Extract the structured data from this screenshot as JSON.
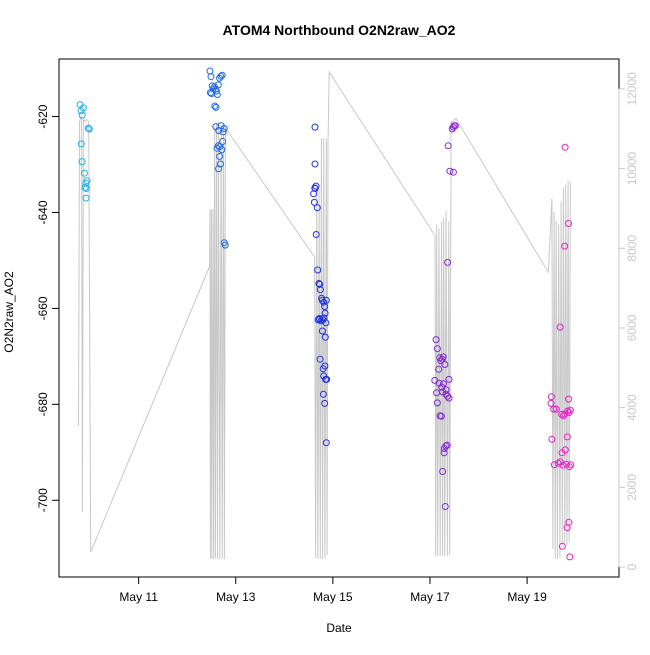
{
  "chart_data": {
    "type": "scatter",
    "title": "ATOM4 Northbound O2N2raw_AO2",
    "xlabel": "Date",
    "ylabel": "O2N2raw_AO2",
    "x_axis": {
      "type": "date",
      "range": [
        "2023-05-09T08:38",
        "2023-05-20T21:26"
      ],
      "ticks": [
        {
          "label": "May 11",
          "value": "2023-05-11T00:00"
        },
        {
          "label": "May 13",
          "value": "2023-05-13T00:00"
        },
        {
          "label": "May 15",
          "value": "2023-05-15T00:00"
        },
        {
          "label": "May 17",
          "value": "2023-05-17T00:00"
        },
        {
          "label": "May 19",
          "value": "2023-05-19T00:00"
        }
      ]
    },
    "y_axis": {
      "range": [
        -716,
        -608
      ],
      "ticks": [
        -620,
        -640,
        -660,
        -680,
        -700
      ]
    },
    "y2_axis": {
      "range": [
        -250,
        12750
      ],
      "ticks": [
        0,
        2000,
        4000,
        6000,
        8000,
        10000,
        12000
      ],
      "color": "#c8c8c8"
    },
    "grid": false,
    "legend": "none",
    "colors": {
      "gradient_start": "#1fb0ee",
      "gradient_mid": "#2030e0",
      "gradient_end": "#ee20c8",
      "line": "#c8c8c8"
    },
    "series": [
      {
        "kind": "points",
        "axis": "left",
        "points": [
          [
            "2023-05-09T19:03",
            -617.5
          ],
          [
            "2023-05-09T19:32",
            -618.8
          ],
          [
            "2023-05-09T20:07",
            -619.7
          ],
          [
            "2023-05-09T20:42",
            -618.2
          ],
          [
            "2023-05-09T19:38",
            -625.7
          ],
          [
            "2023-05-09T20:02",
            -629.4
          ],
          [
            "2023-05-09T21:14",
            -631.8
          ],
          [
            "2023-05-09T21:55",
            -633.9
          ],
          [
            "2023-05-09T22:30",
            -633.4
          ],
          [
            "2023-05-09T21:31",
            -634.8
          ],
          [
            "2023-05-09T22:12",
            -635.0
          ],
          [
            "2023-05-09T22:01",
            -637.0
          ],
          [
            "2023-05-09T23:07",
            -622.4
          ],
          [
            "2023-05-09T23:36",
            -622.6
          ],
          [
            "2023-05-12T11:17",
            -610.5
          ],
          [
            "2023-05-12T11:46",
            -611.7
          ],
          [
            "2023-05-12T12:22",
            -613.6
          ],
          [
            "2023-05-12T12:51",
            -614.2
          ],
          [
            "2023-05-12T13:26",
            -613.8
          ],
          [
            "2023-05-12T13:55",
            -614.3
          ],
          [
            "2023-05-12T11:29",
            -615.0
          ],
          [
            "2023-05-12T12:04",
            -615.2
          ],
          [
            "2023-05-12T14:24",
            -614.7
          ],
          [
            "2023-05-12T14:53",
            -615.4
          ],
          [
            "2023-05-12T13:38",
            -617.8
          ],
          [
            "2023-05-12T14:13",
            -618.1
          ],
          [
            "2023-05-12T15:22",
            -613.4
          ],
          [
            "2023-05-12T16:02",
            -612.0
          ],
          [
            "2023-05-12T16:37",
            -611.6
          ],
          [
            "2023-05-12T17:18",
            -611.4
          ],
          [
            "2023-05-12T17:47",
            -623.2
          ],
          [
            "2023-05-12T18:17",
            -622.5
          ],
          [
            "2023-05-12T15:34",
            -622.9
          ],
          [
            "2023-05-12T16:48",
            -621.9
          ],
          [
            "2023-05-12T14:07",
            -622.1
          ],
          [
            "2023-05-12T14:48",
            -626.6
          ],
          [
            "2023-05-12T15:22",
            -626.1
          ],
          [
            "2023-05-12T16:08",
            -626.3
          ],
          [
            "2023-05-12T17:06",
            -626.9
          ],
          [
            "2023-05-12T17:29",
            -625.2
          ],
          [
            "2023-05-12T16:02",
            -628.3
          ],
          [
            "2023-05-12T16:25",
            -629.9
          ],
          [
            "2023-05-12T15:28",
            -630.9
          ],
          [
            "2023-05-12T18:17",
            -646.3
          ],
          [
            "2023-05-12T18:46",
            -646.8
          ],
          [
            "2023-05-14T15:10",
            -622.2
          ],
          [
            "2023-05-14T14:30",
            -636.1
          ],
          [
            "2023-05-14T15:04",
            -634.9
          ],
          [
            "2023-05-14T15:39",
            -634.5
          ],
          [
            "2023-05-14T15:16",
            -635.0
          ],
          [
            "2023-05-14T14:53",
            -637.9
          ],
          [
            "2023-05-14T15:10",
            -629.9
          ],
          [
            "2023-05-14T16:19",
            -639.0
          ],
          [
            "2023-05-14T15:45",
            -644.6
          ],
          [
            "2023-05-14T16:31",
            -652.0
          ],
          [
            "2023-05-14T17:05",
            -654.8
          ],
          [
            "2023-05-14T17:34",
            -655.0
          ],
          [
            "2023-05-14T18:43",
            -658.3
          ],
          [
            "2023-05-14T17:46",
            -656.1
          ],
          [
            "2023-05-14T18:26",
            -657.9
          ],
          [
            "2023-05-14T19:24",
            -658.7
          ],
          [
            "2023-05-14T19:58",
            -659.6
          ],
          [
            "2023-05-14T20:44",
            -658.3
          ],
          [
            "2023-05-14T19:01",
            -662.4
          ],
          [
            "2023-05-14T18:14",
            -662.6
          ],
          [
            "2023-05-14T17:28",
            -662.3
          ],
          [
            "2023-05-14T16:42",
            -662.4
          ],
          [
            "2023-05-14T17:17",
            -662.1
          ],
          [
            "2023-05-14T19:35",
            -662.0
          ],
          [
            "2023-05-14T20:10",
            -661.0
          ],
          [
            "2023-05-14T20:33",
            -663.0
          ],
          [
            "2023-05-14T18:49",
            -664.7
          ],
          [
            "2023-05-14T20:16",
            -666.0
          ],
          [
            "2023-05-14T17:40",
            -670.6
          ],
          [
            "2023-05-14T19:12",
            -672.6
          ],
          [
            "2023-05-14T20:04",
            -672.0
          ],
          [
            "2023-05-14T19:29",
            -674.1
          ],
          [
            "2023-05-14T20:27",
            -674.8
          ],
          [
            "2023-05-14T20:56",
            -674.8
          ],
          [
            "2023-05-14T19:18",
            -677.9
          ],
          [
            "2023-05-14T19:58",
            -679.8
          ],
          [
            "2023-05-14T20:44",
            -688.0
          ],
          [
            "2023-05-17T11:00",
            -622.6
          ],
          [
            "2023-05-17T11:29",
            -622.2
          ],
          [
            "2023-05-17T11:58",
            -621.9
          ],
          [
            "2023-05-17T12:33",
            -621.9
          ],
          [
            "2023-05-17T09:00",
            -626.1
          ],
          [
            "2023-05-17T09:52",
            -631.4
          ],
          [
            "2023-05-17T11:35",
            -631.6
          ],
          [
            "2023-05-17T08:43",
            -650.4
          ],
          [
            "2023-05-17T03:02",
            -666.5
          ],
          [
            "2023-05-17T03:37",
            -668.4
          ],
          [
            "2023-05-17T04:52",
            -670.3
          ],
          [
            "2023-05-17T05:21",
            -670.9
          ],
          [
            "2023-05-17T06:02",
            -670.6
          ],
          [
            "2023-05-17T06:31",
            -670.1
          ],
          [
            "2023-05-17T04:18",
            -672.7
          ],
          [
            "2023-05-17T07:23",
            -671.7
          ],
          [
            "2023-05-17T02:22",
            -675.0
          ],
          [
            "2023-05-17T04:35",
            -675.6
          ],
          [
            "2023-05-17T05:50",
            -676.4
          ],
          [
            "2023-05-17T06:42",
            -675.7
          ],
          [
            "2023-05-17T07:58",
            -677.0
          ],
          [
            "2023-05-17T09:23",
            -674.8
          ],
          [
            "2023-05-17T03:14",
            -677.6
          ],
          [
            "2023-05-17T06:13",
            -677.4
          ],
          [
            "2023-05-17T07:52",
            -677.9
          ],
          [
            "2023-05-17T08:43",
            -678.3
          ],
          [
            "2023-05-17T09:23",
            -678.7
          ],
          [
            "2023-05-17T03:37",
            -679.7
          ],
          [
            "2023-05-17T04:58",
            -682.4
          ],
          [
            "2023-05-17T05:38",
            -682.5
          ],
          [
            "2023-05-17T07:06",
            -689.2
          ],
          [
            "2023-05-17T07:52",
            -688.7
          ],
          [
            "2023-05-17T08:31",
            -688.5
          ],
          [
            "2023-05-17T07:00",
            -690.1
          ],
          [
            "2023-05-17T06:13",
            -694.0
          ],
          [
            "2023-05-17T07:35",
            -701.3
          ],
          [
            "2023-05-19T18:46",
            -626.4
          ],
          [
            "2023-05-19T20:27",
            -642.3
          ],
          [
            "2023-05-19T18:35",
            -647.0
          ],
          [
            "2023-05-19T16:19",
            -663.9
          ],
          [
            "2023-05-19T12:02",
            -678.4
          ],
          [
            "2023-05-19T11:48",
            -679.8
          ],
          [
            "2023-05-19T13:08",
            -681.0
          ],
          [
            "2023-05-19T14:24",
            -681.0
          ],
          [
            "2023-05-19T17:05",
            -682.1
          ],
          [
            "2023-05-19T18:00",
            -682.4
          ],
          [
            "2023-05-19T18:35",
            -682.0
          ],
          [
            "2023-05-19T20:04",
            -681.4
          ],
          [
            "2023-05-19T20:44",
            -681.7
          ],
          [
            "2023-05-19T21:26",
            -681.2
          ],
          [
            "2023-05-19T20:33",
            -678.9
          ],
          [
            "2023-05-19T12:16",
            -687.3
          ],
          [
            "2023-05-19T19:52",
            -686.8
          ],
          [
            "2023-05-19T18:52",
            -689.5
          ],
          [
            "2023-05-19T17:17",
            -690.1
          ],
          [
            "2023-05-19T13:26",
            -692.6
          ],
          [
            "2023-05-19T15:27",
            -692.3
          ],
          [
            "2023-05-19T16:25",
            -692.0
          ],
          [
            "2023-05-19T17:46",
            -692.7
          ],
          [
            "2023-05-19T19:29",
            -692.5
          ],
          [
            "2023-05-19T20:56",
            -693.0
          ],
          [
            "2023-05-19T21:37",
            -692.6
          ],
          [
            "2023-05-19T20:39",
            -704.6
          ],
          [
            "2023-05-19T19:47",
            -705.7
          ],
          [
            "2023-05-19T17:23",
            -709.6
          ],
          [
            "2023-05-19T21:08",
            -711.8
          ]
        ]
      },
      {
        "kind": "line",
        "axis": "right",
        "color": "#c8c8c8",
        "points": [
          [
            "2023-05-09T18:17",
            3540
          ],
          [
            "2023-05-09T18:46",
            11180
          ],
          [
            "2023-05-09T19:15",
            11260
          ],
          [
            "2023-05-09T19:44",
            11300
          ],
          [
            "2023-05-09T20:13",
            1380
          ],
          [
            "2023-05-09T20:42",
            11260
          ],
          [
            "2023-05-09T21:14",
            11180
          ],
          [
            "2023-05-09T21:43",
            11220
          ],
          [
            "2023-05-09T22:12",
            11220
          ],
          [
            "2023-05-09T22:46",
            11220
          ],
          [
            "2023-05-09T23:19",
            11180
          ],
          [
            "2023-05-10T00:17",
            380
          ],
          [
            "2023-05-12T11:00",
            7540
          ],
          [
            "2023-05-12T11:17",
            8980
          ],
          [
            "2023-05-12T11:29",
            220
          ],
          [
            "2023-05-12T11:58",
            8980
          ],
          [
            "2023-05-12T12:10",
            200
          ],
          [
            "2023-05-12T12:45",
            8980
          ],
          [
            "2023-05-12T13:03",
            200
          ],
          [
            "2023-05-12T13:32",
            11060
          ],
          [
            "2023-05-12T13:55",
            220
          ],
          [
            "2023-05-12T14:30",
            11140
          ],
          [
            "2023-05-12T14:59",
            200
          ],
          [
            "2023-05-12T15:28",
            11180
          ],
          [
            "2023-05-12T16:08",
            200
          ],
          [
            "2023-05-12T16:48",
            11100
          ],
          [
            "2023-05-12T17:18",
            200
          ],
          [
            "2023-05-12T17:58",
            11100
          ],
          [
            "2023-05-12T18:23",
            200
          ],
          [
            "2023-05-12T18:52",
            11020
          ],
          [
            "2023-05-14T14:59",
            7780
          ],
          [
            "2023-05-14T15:28",
            220
          ],
          [
            "2023-05-14T16:02",
            9500
          ],
          [
            "2023-05-14T16:37",
            200
          ],
          [
            "2023-05-14T17:11",
            9440
          ],
          [
            "2023-05-14T17:46",
            200
          ],
          [
            "2023-05-14T18:20",
            10760
          ],
          [
            "2023-05-14T18:55",
            200
          ],
          [
            "2023-05-14T19:29",
            10760
          ],
          [
            "2023-05-14T20:04",
            220
          ],
          [
            "2023-05-14T20:44",
            10760
          ],
          [
            "2023-05-14T21:08",
            300
          ],
          [
            "2023-05-14T21:37",
            10640
          ],
          [
            "2023-05-14T22:12",
            12420
          ],
          [
            "2023-05-17T02:28",
            8320
          ],
          [
            "2023-05-17T02:51",
            280
          ],
          [
            "2023-05-17T03:20",
            8600
          ],
          [
            "2023-05-17T03:49",
            280
          ],
          [
            "2023-05-17T04:29",
            8500
          ],
          [
            "2023-05-17T05:04",
            280
          ],
          [
            "2023-05-17T05:44",
            8680
          ],
          [
            "2023-05-17T06:13",
            280
          ],
          [
            "2023-05-17T06:48",
            8780
          ],
          [
            "2023-05-17T07:17",
            280
          ],
          [
            "2023-05-17T07:58",
            8940
          ],
          [
            "2023-05-17T08:37",
            280
          ],
          [
            "2023-05-17T09:17",
            8680
          ],
          [
            "2023-05-17T09:46",
            300
          ],
          [
            "2023-05-17T10:26",
            11140
          ],
          [
            "2023-05-17T11:00",
            11180
          ],
          [
            "2023-05-17T12:50",
            11260
          ],
          [
            "2023-05-19T10:28",
            7400
          ],
          [
            "2023-05-19T12:16",
            9240
          ],
          [
            "2023-05-19T12:45",
            460
          ],
          [
            "2023-05-19T13:20",
            8920
          ],
          [
            "2023-05-19T13:55",
            200
          ],
          [
            "2023-05-19T14:24",
            8700
          ],
          [
            "2023-05-19T14:59",
            200
          ],
          [
            "2023-05-19T15:39",
            8600
          ],
          [
            "2023-05-19T16:14",
            240
          ],
          [
            "2023-05-19T16:48",
            9180
          ],
          [
            "2023-05-19T17:23",
            540
          ],
          [
            "2023-05-19T17:58",
            9520
          ],
          [
            "2023-05-19T18:35",
            540
          ],
          [
            "2023-05-19T19:06",
            9600
          ],
          [
            "2023-05-19T19:41",
            560
          ],
          [
            "2023-05-19T20:16",
            9700
          ],
          [
            "2023-05-19T20:50",
            620
          ],
          [
            "2023-05-19T21:26",
            9660
          ]
        ]
      }
    ]
  }
}
